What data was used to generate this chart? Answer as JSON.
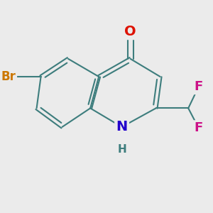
{
  "bg_color": "#ebebeb",
  "bond_color": "#3d7d7d",
  "bond_width": 1.5,
  "atom_colors": {
    "O": "#dd1100",
    "N": "#2200cc",
    "Br": "#cc7700",
    "F": "#cc1188",
    "C": "#3d7d7d",
    "H": "#3d7d7d"
  },
  "figsize": [
    3.0,
    3.0
  ],
  "dpi": 100
}
